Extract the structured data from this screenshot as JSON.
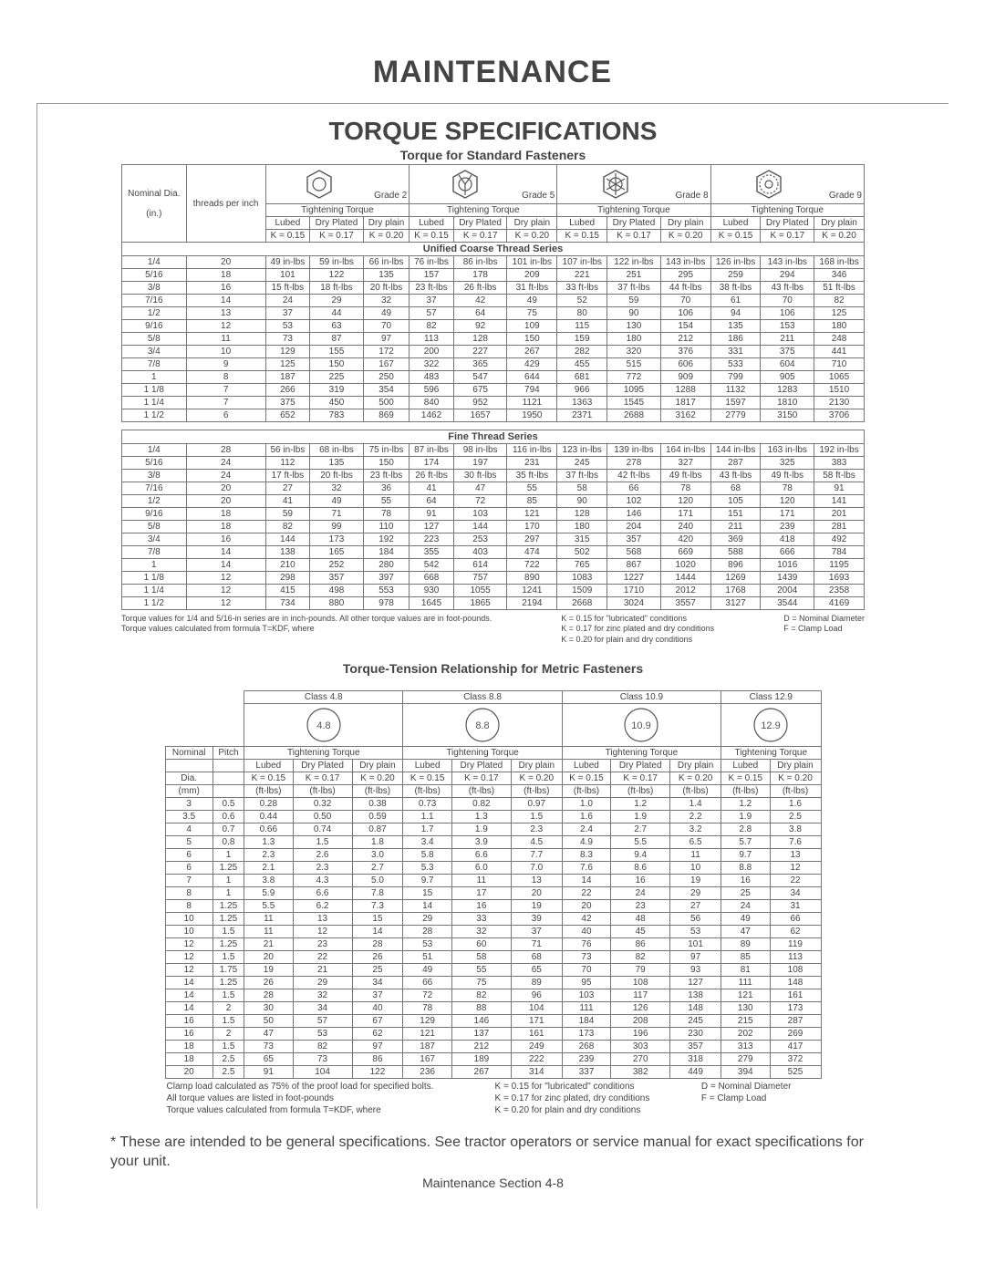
{
  "title": "MAINTENANCE",
  "section_title": "TORQUE SPECIFICATIONS",
  "std_caption": "Torque for Standard Fasteners",
  "metric_caption": "Torque-Tension Relationship for Metric Fasteners",
  "headers": {
    "nominal_dia": "Nominal Dia.",
    "threads_per_inch": "threads per inch",
    "in": "(in.)",
    "tightening_torque": "Tightening Torque",
    "lubed": "Lubed",
    "dry_plated": "Dry Plated",
    "dry_plain": "Dry plain",
    "grade2": "Grade 2",
    "grade5": "Grade 5",
    "grade8": "Grade 8",
    "grade9": "Grade 9",
    "k015": "K = 0.15",
    "k017": "K = 0.17",
    "k020": "K = 0.20",
    "ucts": "Unified Coarse Thread Series",
    "fts": "Fine Thread Series",
    "nominal": "Nominal",
    "pitch": "Pitch",
    "dia_mm": "Dia.",
    "mm": "(mm)",
    "ftlbs": "(ft-lbs)",
    "class48": "Class 4.8",
    "class88": "Class 8.8",
    "class109": "Class 10.9",
    "class129": "Class 12.9",
    "c48": "4.8",
    "c88": "8.8",
    "c109": "10.9",
    "c129": "12.9"
  },
  "coarse": [
    {
      "dia": "1/4",
      "tpi": "20",
      "g2": [
        "49 in-lbs",
        "59   in-lbs",
        "66   in-lbs"
      ],
      "g5": [
        "76 in-lbs",
        "86 in-lbs",
        "101 in-lbs"
      ],
      "g8": [
        "107 in-lbs",
        "122 in-lbs",
        "143 in-lbs"
      ],
      "g9": [
        "126 in-lbs",
        "143 in-lbs",
        "168 in-lbs"
      ]
    },
    {
      "dia": "5/16",
      "tpi": "18",
      "g2": [
        "101",
        "122",
        "135"
      ],
      "g5": [
        "157",
        "178",
        "209"
      ],
      "g8": [
        "221",
        "251",
        "295"
      ],
      "g9": [
        "259",
        "294",
        "346"
      ]
    },
    {
      "dia": "3/8",
      "tpi": "16",
      "g2": [
        "15 ft-lbs",
        "18   ft-lbs",
        "20   ft-lbs"
      ],
      "g5": [
        "23   ft-lbs",
        "26   ft-lbs",
        "31   ft-lbs"
      ],
      "g8": [
        "33  ft-lbs",
        "37   ft-lbs",
        "44   ft-lbs"
      ],
      "g9": [
        "38   ft-lbs",
        "43   ft-lbs",
        "51   ft-lbs"
      ]
    },
    {
      "dia": "7/16",
      "tpi": "14",
      "g2": [
        "24",
        "29",
        "32"
      ],
      "g5": [
        "37",
        "42",
        "49"
      ],
      "g8": [
        "52",
        "59",
        "70"
      ],
      "g9": [
        "61",
        "70",
        "82"
      ]
    },
    {
      "dia": "1/2",
      "tpi": "13",
      "g2": [
        "37",
        "44",
        "49"
      ],
      "g5": [
        "57",
        "64",
        "75"
      ],
      "g8": [
        "80",
        "90",
        "106"
      ],
      "g9": [
        "94",
        "106",
        "125"
      ]
    },
    {
      "dia": "9/16",
      "tpi": "12",
      "g2": [
        "53",
        "63",
        "70"
      ],
      "g5": [
        "82",
        "92",
        "109"
      ],
      "g8": [
        "115",
        "130",
        "154"
      ],
      "g9": [
        "135",
        "153",
        "180"
      ]
    },
    {
      "dia": "5/8",
      "tpi": "11",
      "g2": [
        "73",
        "87",
        "97"
      ],
      "g5": [
        "113",
        "128",
        "150"
      ],
      "g8": [
        "159",
        "180",
        "212"
      ],
      "g9": [
        "186",
        "211",
        "248"
      ]
    },
    {
      "dia": "3/4",
      "tpi": "10",
      "g2": [
        "129",
        "155",
        "172"
      ],
      "g5": [
        "200",
        "227",
        "267"
      ],
      "g8": [
        "282",
        "320",
        "376"
      ],
      "g9": [
        "331",
        "375",
        "441"
      ]
    },
    {
      "dia": "7/8",
      "tpi": "9",
      "g2": [
        "125",
        "150",
        "167"
      ],
      "g5": [
        "322",
        "365",
        "429"
      ],
      "g8": [
        "455",
        "515",
        "606"
      ],
      "g9": [
        "533",
        "604",
        "710"
      ]
    },
    {
      "dia": "1",
      "tpi": "8",
      "g2": [
        "187",
        "225",
        "250"
      ],
      "g5": [
        "483",
        "547",
        "644"
      ],
      "g8": [
        "681",
        "772",
        "909"
      ],
      "g9": [
        "799",
        "905",
        "1065"
      ]
    },
    {
      "dia": "1 1/8",
      "tpi": "7",
      "g2": [
        "266",
        "319",
        "354"
      ],
      "g5": [
        "596",
        "675",
        "794"
      ],
      "g8": [
        "966",
        "1095",
        "1288"
      ],
      "g9": [
        "1132",
        "1283",
        "1510"
      ]
    },
    {
      "dia": "1 1/4",
      "tpi": "7",
      "g2": [
        "375",
        "450",
        "500"
      ],
      "g5": [
        "840",
        "952",
        "1121"
      ],
      "g8": [
        "1363",
        "1545",
        "1817"
      ],
      "g9": [
        "1597",
        "1810",
        "2130"
      ]
    },
    {
      "dia": "1 1/2",
      "tpi": "6",
      "g2": [
        "652",
        "783",
        "869"
      ],
      "g5": [
        "1462",
        "1657",
        "1950"
      ],
      "g8": [
        "2371",
        "2688",
        "3162"
      ],
      "g9": [
        "2779",
        "3150",
        "3706"
      ]
    }
  ],
  "fine": [
    {
      "dia": "1/4",
      "tpi": "28",
      "g2": [
        "56 in-lbs",
        "68 in-lbs",
        "75 in-lbs"
      ],
      "g5": [
        "87 in-lbs",
        "98 in-lbs",
        "116 in-lbs"
      ],
      "g8": [
        "123 in-lbs",
        "139 in-lbs",
        "164 in-lbs"
      ],
      "g9": [
        "144 in-lbs",
        "163 in-lbs",
        "192 in-lbs"
      ]
    },
    {
      "dia": "5/16",
      "tpi": "24",
      "g2": [
        "112",
        "135",
        "150"
      ],
      "g5": [
        "174",
        "197",
        "231"
      ],
      "g8": [
        "245",
        "278",
        "327"
      ],
      "g9": [
        "287",
        "325",
        "383"
      ]
    },
    {
      "dia": "3/8",
      "tpi": "24",
      "g2": [
        "17 ft-lbs",
        "20 ft-lbs",
        "23  ft-lbs"
      ],
      "g5": [
        "26 ft-lbs",
        "30 ft-lbs",
        "35 ft-lbs"
      ],
      "g8": [
        "37  ft-lbs",
        "42  ft-lbs",
        "49  ft-lbs"
      ],
      "g9": [
        "43  ft-lbs",
        "49  ft-lbs",
        "58  ft-lbs"
      ]
    },
    {
      "dia": "7/16",
      "tpi": "20",
      "g2": [
        "27",
        "32",
        "36"
      ],
      "g5": [
        "41",
        "47",
        "55"
      ],
      "g8": [
        "58",
        "66",
        "78"
      ],
      "g9": [
        "68",
        "78",
        "91"
      ]
    },
    {
      "dia": "1/2",
      "tpi": "20",
      "g2": [
        "41",
        "49",
        "55"
      ],
      "g5": [
        "64",
        "72",
        "85"
      ],
      "g8": [
        "90",
        "102",
        "120"
      ],
      "g9": [
        "105",
        "120",
        "141"
      ]
    },
    {
      "dia": "9/16",
      "tpi": "18",
      "g2": [
        "59",
        "71",
        "78"
      ],
      "g5": [
        "91",
        "103",
        "121"
      ],
      "g8": [
        "128",
        "146",
        "171"
      ],
      "g9": [
        "151",
        "171",
        "201"
      ]
    },
    {
      "dia": "5/8",
      "tpi": "18",
      "g2": [
        "82",
        "99",
        "110"
      ],
      "g5": [
        "127",
        "144",
        "170"
      ],
      "g8": [
        "180",
        "204",
        "240"
      ],
      "g9": [
        "211",
        "239",
        "281"
      ]
    },
    {
      "dia": "3/4",
      "tpi": "16",
      "g2": [
        "144",
        "173",
        "192"
      ],
      "g5": [
        "223",
        "253",
        "297"
      ],
      "g8": [
        "315",
        "357",
        "420"
      ],
      "g9": [
        "369",
        "418",
        "492"
      ]
    },
    {
      "dia": "7/8",
      "tpi": "14",
      "g2": [
        "138",
        "165",
        "184"
      ],
      "g5": [
        "355",
        "403",
        "474"
      ],
      "g8": [
        "502",
        "568",
        "669"
      ],
      "g9": [
        "588",
        "666",
        "784"
      ]
    },
    {
      "dia": "1",
      "tpi": "14",
      "g2": [
        "210",
        "252",
        "280"
      ],
      "g5": [
        "542",
        "614",
        "722"
      ],
      "g8": [
        "765",
        "867",
        "1020"
      ],
      "g9": [
        "896",
        "1016",
        "1195"
      ]
    },
    {
      "dia": "1 1/8",
      "tpi": "12",
      "g2": [
        "298",
        "357",
        "397"
      ],
      "g5": [
        "668",
        "757",
        "890"
      ],
      "g8": [
        "1083",
        "1227",
        "1444"
      ],
      "g9": [
        "1269",
        "1439",
        "1693"
      ]
    },
    {
      "dia": "1 1/4",
      "tpi": "12",
      "g2": [
        "415",
        "498",
        "553"
      ],
      "g5": [
        "930",
        "1055",
        "1241"
      ],
      "g8": [
        "1509",
        "1710",
        "2012"
      ],
      "g9": [
        "1768",
        "2004",
        "2358"
      ]
    },
    {
      "dia": "1 1/2",
      "tpi": "12",
      "g2": [
        "734",
        "880",
        "978"
      ],
      "g5": [
        "1645",
        "1865",
        "2194"
      ],
      "g8": [
        "2668",
        "3024",
        "3557"
      ],
      "g9": [
        "3127",
        "3544",
        "4169"
      ]
    }
  ],
  "metric": [
    {
      "dia": "3",
      "p": "0.5",
      "c48": [
        "0.28",
        "0.32",
        "0.38"
      ],
      "c88": [
        "0.73",
        "0.82",
        "0.97"
      ],
      "c109": [
        "1.0",
        "1.2",
        "1.4"
      ],
      "c129": [
        "1.2",
        "1.6"
      ]
    },
    {
      "dia": "3.5",
      "p": "0.6",
      "c48": [
        "0.44",
        "0.50",
        "0.59"
      ],
      "c88": [
        "1.1",
        "1.3",
        "1.5"
      ],
      "c109": [
        "1.6",
        "1.9",
        "2.2"
      ],
      "c129": [
        "1.9",
        "2.5"
      ]
    },
    {
      "dia": "4",
      "p": "0.7",
      "c48": [
        "0.66",
        "0.74",
        "0.87"
      ],
      "c88": [
        "1.7",
        "1.9",
        "2.3"
      ],
      "c109": [
        "2.4",
        "2.7",
        "3.2"
      ],
      "c129": [
        "2.8",
        "3.8"
      ]
    },
    {
      "dia": "5",
      "p": "0.8",
      "c48": [
        "1.3",
        "1.5",
        "1.8"
      ],
      "c88": [
        "3.4",
        "3.9",
        "4.5"
      ],
      "c109": [
        "4.9",
        "5.5",
        "6.5"
      ],
      "c129": [
        "5.7",
        "7.6"
      ]
    },
    {
      "dia": "6",
      "p": "1",
      "c48": [
        "2.3",
        "2.6",
        "3.0"
      ],
      "c88": [
        "5.8",
        "6.6",
        "7.7"
      ],
      "c109": [
        "8.3",
        "9.4",
        "11"
      ],
      "c129": [
        "9.7",
        "13"
      ]
    },
    {
      "dia": "6",
      "p": "1.25",
      "c48": [
        "2.1",
        "2.3",
        "2.7"
      ],
      "c88": [
        "5.3",
        "6.0",
        "7.0"
      ],
      "c109": [
        "7.6",
        "8.6",
        "10"
      ],
      "c129": [
        "8.8",
        "12"
      ]
    },
    {
      "dia": "7",
      "p": "1",
      "c48": [
        "3.8",
        "4.3",
        "5.0"
      ],
      "c88": [
        "9.7",
        "11",
        "13"
      ],
      "c109": [
        "14",
        "16",
        "19"
      ],
      "c129": [
        "16",
        "22"
      ]
    },
    {
      "dia": "8",
      "p": "1",
      "c48": [
        "5.9",
        "6.6",
        "7.8"
      ],
      "c88": [
        "15",
        "17",
        "20"
      ],
      "c109": [
        "22",
        "24",
        "29"
      ],
      "c129": [
        "25",
        "34"
      ]
    },
    {
      "dia": "8",
      "p": "1.25",
      "c48": [
        "5.5",
        "6.2",
        "7.3"
      ],
      "c88": [
        "14",
        "16",
        "19"
      ],
      "c109": [
        "20",
        "23",
        "27"
      ],
      "c129": [
        "24",
        "31"
      ]
    },
    {
      "dia": "10",
      "p": "1.25",
      "c48": [
        "11",
        "13",
        "15"
      ],
      "c88": [
        "29",
        "33",
        "39"
      ],
      "c109": [
        "42",
        "48",
        "56"
      ],
      "c129": [
        "49",
        "66"
      ]
    },
    {
      "dia": "10",
      "p": "1.5",
      "c48": [
        "11",
        "12",
        "14"
      ],
      "c88": [
        "28",
        "32",
        "37"
      ],
      "c109": [
        "40",
        "45",
        "53"
      ],
      "c129": [
        "47",
        "62"
      ]
    },
    {
      "dia": "12",
      "p": "1.25",
      "c48": [
        "21",
        "23",
        "28"
      ],
      "c88": [
        "53",
        "60",
        "71"
      ],
      "c109": [
        "76",
        "86",
        "101"
      ],
      "c129": [
        "89",
        "119"
      ]
    },
    {
      "dia": "12",
      "p": "1.5",
      "c48": [
        "20",
        "22",
        "26"
      ],
      "c88": [
        "51",
        "58",
        "68"
      ],
      "c109": [
        "73",
        "82",
        "97"
      ],
      "c129": [
        "85",
        "113"
      ]
    },
    {
      "dia": "12",
      "p": "1.75",
      "c48": [
        "19",
        "21",
        "25"
      ],
      "c88": [
        "49",
        "55",
        "65"
      ],
      "c109": [
        "70",
        "79",
        "93"
      ],
      "c129": [
        "81",
        "108"
      ]
    },
    {
      "dia": "14",
      "p": "1.25",
      "c48": [
        "26",
        "29",
        "34"
      ],
      "c88": [
        "66",
        "75",
        "89"
      ],
      "c109": [
        "95",
        "108",
        "127"
      ],
      "c129": [
        "111",
        "148"
      ]
    },
    {
      "dia": "14",
      "p": "1.5",
      "c48": [
        "28",
        "32",
        "37"
      ],
      "c88": [
        "72",
        "82",
        "96"
      ],
      "c109": [
        "103",
        "117",
        "138"
      ],
      "c129": [
        "121",
        "161"
      ]
    },
    {
      "dia": "14",
      "p": "2",
      "c48": [
        "30",
        "34",
        "40"
      ],
      "c88": [
        "78",
        "88",
        "104"
      ],
      "c109": [
        "111",
        "126",
        "148"
      ],
      "c129": [
        "130",
        "173"
      ]
    },
    {
      "dia": "16",
      "p": "1.5",
      "c48": [
        "50",
        "57",
        "67"
      ],
      "c88": [
        "129",
        "146",
        "171"
      ],
      "c109": [
        "184",
        "208",
        "245"
      ],
      "c129": [
        "215",
        "287"
      ]
    },
    {
      "dia": "16",
      "p": "2",
      "c48": [
        "47",
        "53",
        "62"
      ],
      "c88": [
        "121",
        "137",
        "161"
      ],
      "c109": [
        "173",
        "196",
        "230"
      ],
      "c129": [
        "202",
        "269"
      ]
    },
    {
      "dia": "18",
      "p": "1.5",
      "c48": [
        "73",
        "82",
        "97"
      ],
      "c88": [
        "187",
        "212",
        "249"
      ],
      "c109": [
        "268",
        "303",
        "357"
      ],
      "c129": [
        "313",
        "417"
      ]
    },
    {
      "dia": "18",
      "p": "2.5",
      "c48": [
        "65",
        "73",
        "86"
      ],
      "c88": [
        "167",
        "189",
        "222"
      ],
      "c109": [
        "239",
        "270",
        "318"
      ],
      "c129": [
        "279",
        "372"
      ]
    },
    {
      "dia": "20",
      "p": "2.5",
      "c48": [
        "91",
        "104",
        "122"
      ],
      "c88": [
        "236",
        "267",
        "314"
      ],
      "c109": [
        "337",
        "382",
        "449"
      ],
      "c129": [
        "394",
        "525"
      ]
    }
  ],
  "footnotes_std": {
    "left1": "Torque values for 1/4 and 5/16-in series are in inch-pounds.  All other torque values are in foot-pounds.",
    "left2": "Torque values calculated from formula T=KDF, where",
    "mid1": "K = 0.15 for \"lubricated\" conditions",
    "mid2": "K = 0.17 for zinc plated and dry conditions",
    "mid3": "K = 0.20 for plain and dry conditions",
    "right1": "D = Nominal Diameter",
    "right2": "F = Clamp Load"
  },
  "footnotes_metric": {
    "l1": "Clamp load calculated as 75% of the proof load for specified bolts.",
    "l2": "All torque values are listed in foot-pounds",
    "l3": "Torque values calculated from formula T=KDF, where",
    "m1": "K = 0.15 for \"lubricated\" conditions",
    "m2": "K = 0.17 for zinc plated, dry conditions",
    "m3": "K = 0.20 for plain and dry conditions",
    "r1": "D = Nominal Diameter",
    "r2": "F = Clamp Load"
  },
  "disclaimer": "*  These are intended to be general specifications.   See tractor operators or service manual for exact specifications for your unit.",
  "footer": "Maintenance Section  4-8"
}
